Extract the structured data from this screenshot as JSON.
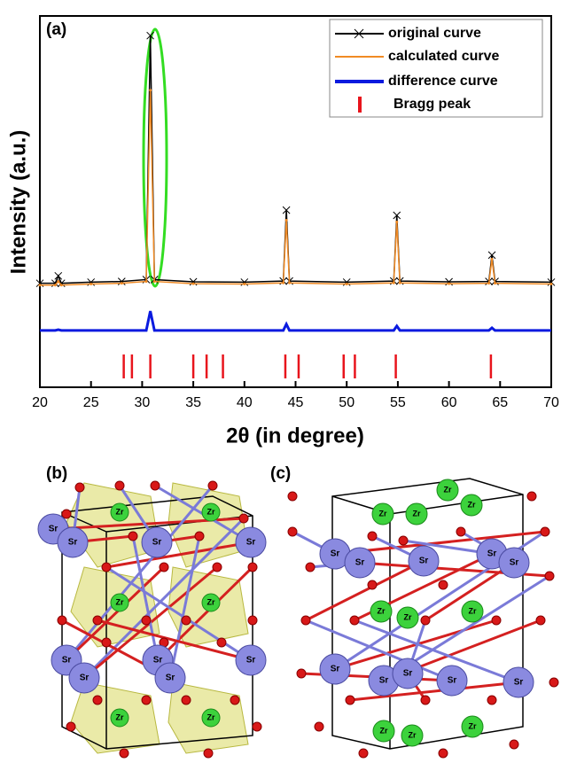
{
  "chart_data": {
    "type": "line",
    "panel_label": "(a)",
    "xlabel": "2θ (in degree)",
    "ylabel": "Intensity (a.u.)",
    "x": [
      20,
      21.5,
      21.8,
      22.1,
      25,
      28,
      30.4,
      30.8,
      31.2,
      35,
      40,
      43.8,
      44.1,
      44.4,
      50,
      54.6,
      54.9,
      55.2,
      60,
      63.9,
      64.2,
      64.5,
      70
    ],
    "series": [
      {
        "name": "original curve",
        "color": "#000000",
        "values": [
          28,
          28,
          30,
          28,
          28.3,
          28.5,
          29,
          94.7,
          29,
          28.4,
          28.3,
          28.6,
          47.7,
          28.6,
          28.3,
          28.6,
          46.3,
          28.6,
          28.4,
          28.5,
          35.6,
          28.5,
          28.3
        ]
      },
      {
        "name": "calculated curve",
        "color": "#f08a24",
        "values": [
          27.5,
          27.5,
          28.5,
          27.5,
          27.8,
          28,
          28.5,
          80,
          28.5,
          27.9,
          27.8,
          28.1,
          45,
          28.1,
          27.8,
          28.1,
          44.5,
          28.1,
          27.9,
          28,
          34.5,
          28,
          27.8
        ]
      },
      {
        "name": "difference curve",
        "color": "#0a1adf",
        "values": [
          15.3,
          15.3,
          15.5,
          15.3,
          15.3,
          15.3,
          15.3,
          20.5,
          15.3,
          15.3,
          15.3,
          15.3,
          17,
          15.3,
          15.3,
          15.3,
          16.5,
          15.3,
          15.3,
          15.3,
          16,
          15.3,
          15.3
        ]
      }
    ],
    "bragg_peak": {
      "name": "Bragg peak",
      "color": "#e8141c",
      "positions": [
        28.2,
        29.0,
        30.8,
        35.0,
        36.3,
        37.9,
        44.0,
        45.3,
        49.7,
        50.8,
        54.8,
        64.1
      ]
    },
    "xlim": [
      20,
      70
    ],
    "xticks": [
      20,
      25,
      30,
      35,
      40,
      45,
      50,
      55,
      60,
      65,
      70
    ],
    "ylim": [
      0,
      100
    ]
  },
  "structures": [
    {
      "label": "(b)",
      "sr_atoms": [
        "Sr",
        "Sr",
        "Sr",
        "Sr",
        "Sr",
        "Sr",
        "Sr",
        "Sr",
        "Sr"
      ],
      "zr_atoms": [
        "Zr",
        "Zr",
        "Zr",
        "Zr",
        "Zr",
        "Zr"
      ]
    },
    {
      "label": "(c)",
      "sr_atoms": [
        "Sr",
        "Sr",
        "Sr",
        "Sr",
        "Sr",
        "Sr",
        "Sr",
        "Sr",
        "Sr",
        "Sr"
      ],
      "zr_atoms": [
        "Zr",
        "Zr",
        "Zr",
        "Zr",
        "Zr",
        "Zr",
        "Zr",
        "Zr",
        "Zr",
        "Zr"
      ]
    }
  ]
}
